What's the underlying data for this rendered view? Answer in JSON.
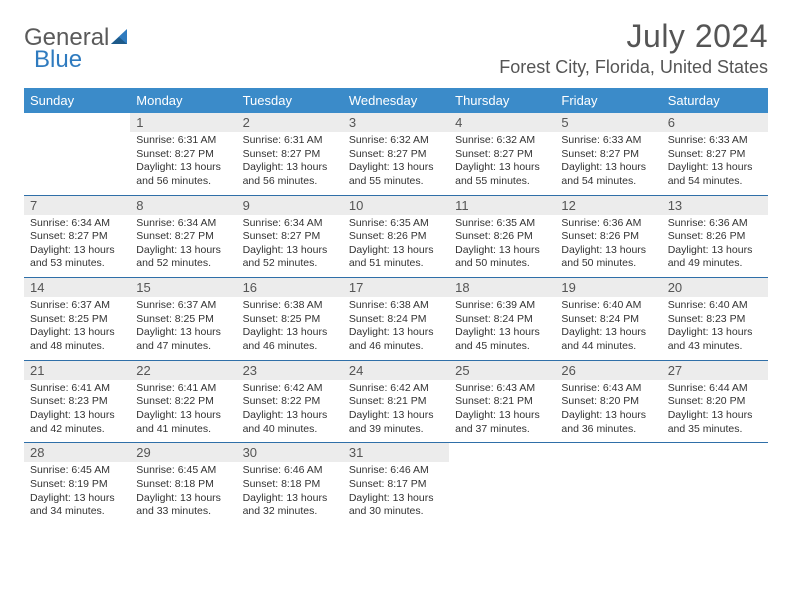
{
  "logo": {
    "text1": "General",
    "text2": "Blue"
  },
  "title": "July 2024",
  "location": "Forest City, Florida, United States",
  "colors": {
    "header_bg": "#3b8bc9",
    "header_text": "#ffffff",
    "daynum_bg": "#ececec",
    "week_border": "#2f6fa8",
    "text": "#333333",
    "title_text": "#555555",
    "logo_gray": "#5a5a5a",
    "logo_blue": "#2f7bbf"
  },
  "days_of_week": [
    "Sunday",
    "Monday",
    "Tuesday",
    "Wednesday",
    "Thursday",
    "Friday",
    "Saturday"
  ],
  "weeks": [
    [
      {
        "n": "",
        "sr": "",
        "ss": "",
        "dl": ""
      },
      {
        "n": "1",
        "sr": "Sunrise: 6:31 AM",
        "ss": "Sunset: 8:27 PM",
        "dl": "Daylight: 13 hours and 56 minutes."
      },
      {
        "n": "2",
        "sr": "Sunrise: 6:31 AM",
        "ss": "Sunset: 8:27 PM",
        "dl": "Daylight: 13 hours and 56 minutes."
      },
      {
        "n": "3",
        "sr": "Sunrise: 6:32 AM",
        "ss": "Sunset: 8:27 PM",
        "dl": "Daylight: 13 hours and 55 minutes."
      },
      {
        "n": "4",
        "sr": "Sunrise: 6:32 AM",
        "ss": "Sunset: 8:27 PM",
        "dl": "Daylight: 13 hours and 55 minutes."
      },
      {
        "n": "5",
        "sr": "Sunrise: 6:33 AM",
        "ss": "Sunset: 8:27 PM",
        "dl": "Daylight: 13 hours and 54 minutes."
      },
      {
        "n": "6",
        "sr": "Sunrise: 6:33 AM",
        "ss": "Sunset: 8:27 PM",
        "dl": "Daylight: 13 hours and 54 minutes."
      }
    ],
    [
      {
        "n": "7",
        "sr": "Sunrise: 6:34 AM",
        "ss": "Sunset: 8:27 PM",
        "dl": "Daylight: 13 hours and 53 minutes."
      },
      {
        "n": "8",
        "sr": "Sunrise: 6:34 AM",
        "ss": "Sunset: 8:27 PM",
        "dl": "Daylight: 13 hours and 52 minutes."
      },
      {
        "n": "9",
        "sr": "Sunrise: 6:34 AM",
        "ss": "Sunset: 8:27 PM",
        "dl": "Daylight: 13 hours and 52 minutes."
      },
      {
        "n": "10",
        "sr": "Sunrise: 6:35 AM",
        "ss": "Sunset: 8:26 PM",
        "dl": "Daylight: 13 hours and 51 minutes."
      },
      {
        "n": "11",
        "sr": "Sunrise: 6:35 AM",
        "ss": "Sunset: 8:26 PM",
        "dl": "Daylight: 13 hours and 50 minutes."
      },
      {
        "n": "12",
        "sr": "Sunrise: 6:36 AM",
        "ss": "Sunset: 8:26 PM",
        "dl": "Daylight: 13 hours and 50 minutes."
      },
      {
        "n": "13",
        "sr": "Sunrise: 6:36 AM",
        "ss": "Sunset: 8:26 PM",
        "dl": "Daylight: 13 hours and 49 minutes."
      }
    ],
    [
      {
        "n": "14",
        "sr": "Sunrise: 6:37 AM",
        "ss": "Sunset: 8:25 PM",
        "dl": "Daylight: 13 hours and 48 minutes."
      },
      {
        "n": "15",
        "sr": "Sunrise: 6:37 AM",
        "ss": "Sunset: 8:25 PM",
        "dl": "Daylight: 13 hours and 47 minutes."
      },
      {
        "n": "16",
        "sr": "Sunrise: 6:38 AM",
        "ss": "Sunset: 8:25 PM",
        "dl": "Daylight: 13 hours and 46 minutes."
      },
      {
        "n": "17",
        "sr": "Sunrise: 6:38 AM",
        "ss": "Sunset: 8:24 PM",
        "dl": "Daylight: 13 hours and 46 minutes."
      },
      {
        "n": "18",
        "sr": "Sunrise: 6:39 AM",
        "ss": "Sunset: 8:24 PM",
        "dl": "Daylight: 13 hours and 45 minutes."
      },
      {
        "n": "19",
        "sr": "Sunrise: 6:40 AM",
        "ss": "Sunset: 8:24 PM",
        "dl": "Daylight: 13 hours and 44 minutes."
      },
      {
        "n": "20",
        "sr": "Sunrise: 6:40 AM",
        "ss": "Sunset: 8:23 PM",
        "dl": "Daylight: 13 hours and 43 minutes."
      }
    ],
    [
      {
        "n": "21",
        "sr": "Sunrise: 6:41 AM",
        "ss": "Sunset: 8:23 PM",
        "dl": "Daylight: 13 hours and 42 minutes."
      },
      {
        "n": "22",
        "sr": "Sunrise: 6:41 AM",
        "ss": "Sunset: 8:22 PM",
        "dl": "Daylight: 13 hours and 41 minutes."
      },
      {
        "n": "23",
        "sr": "Sunrise: 6:42 AM",
        "ss": "Sunset: 8:22 PM",
        "dl": "Daylight: 13 hours and 40 minutes."
      },
      {
        "n": "24",
        "sr": "Sunrise: 6:42 AM",
        "ss": "Sunset: 8:21 PM",
        "dl": "Daylight: 13 hours and 39 minutes."
      },
      {
        "n": "25",
        "sr": "Sunrise: 6:43 AM",
        "ss": "Sunset: 8:21 PM",
        "dl": "Daylight: 13 hours and 37 minutes."
      },
      {
        "n": "26",
        "sr": "Sunrise: 6:43 AM",
        "ss": "Sunset: 8:20 PM",
        "dl": "Daylight: 13 hours and 36 minutes."
      },
      {
        "n": "27",
        "sr": "Sunrise: 6:44 AM",
        "ss": "Sunset: 8:20 PM",
        "dl": "Daylight: 13 hours and 35 minutes."
      }
    ],
    [
      {
        "n": "28",
        "sr": "Sunrise: 6:45 AM",
        "ss": "Sunset: 8:19 PM",
        "dl": "Daylight: 13 hours and 34 minutes."
      },
      {
        "n": "29",
        "sr": "Sunrise: 6:45 AM",
        "ss": "Sunset: 8:18 PM",
        "dl": "Daylight: 13 hours and 33 minutes."
      },
      {
        "n": "30",
        "sr": "Sunrise: 6:46 AM",
        "ss": "Sunset: 8:18 PM",
        "dl": "Daylight: 13 hours and 32 minutes."
      },
      {
        "n": "31",
        "sr": "Sunrise: 6:46 AM",
        "ss": "Sunset: 8:17 PM",
        "dl": "Daylight: 13 hours and 30 minutes."
      },
      {
        "n": "",
        "sr": "",
        "ss": "",
        "dl": ""
      },
      {
        "n": "",
        "sr": "",
        "ss": "",
        "dl": ""
      },
      {
        "n": "",
        "sr": "",
        "ss": "",
        "dl": ""
      }
    ]
  ]
}
